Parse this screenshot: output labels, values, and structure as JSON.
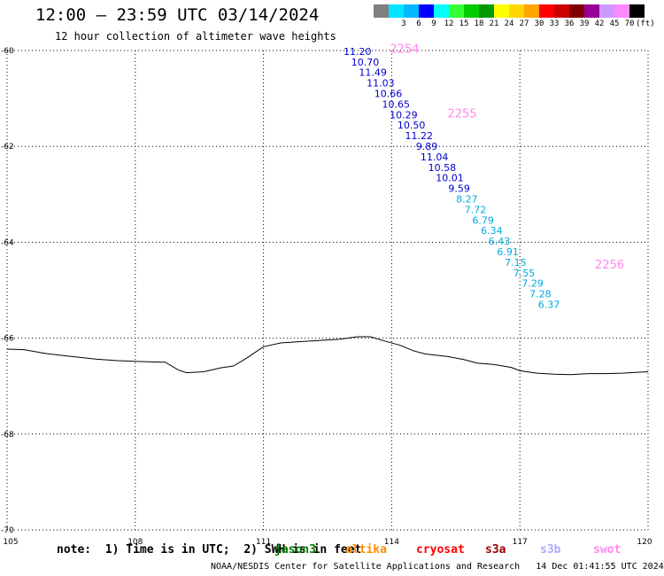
{
  "header": {
    "title": "12:00 – 23:59 UTC 03/14/2024",
    "subtitle": "12 hour collection of altimeter wave heights"
  },
  "legend": {
    "unit": "(ft)",
    "items": [
      {
        "label": "",
        "color": "#808080"
      },
      {
        "label": "3",
        "color": "#00e5ff"
      },
      {
        "label": "6",
        "color": "#00b8ff"
      },
      {
        "label": "9",
        "color": "#0000ff"
      },
      {
        "label": "12",
        "color": "#00ffff"
      },
      {
        "label": "15",
        "color": "#33ff33"
      },
      {
        "label": "18",
        "color": "#00cc00"
      },
      {
        "label": "21",
        "color": "#009900"
      },
      {
        "label": "24",
        "color": "#ffff00"
      },
      {
        "label": "27",
        "color": "#ffd700"
      },
      {
        "label": "30",
        "color": "#ffa500"
      },
      {
        "label": "33",
        "color": "#ff0000"
      },
      {
        "label": "36",
        "color": "#cc0000"
      },
      {
        "label": "39",
        "color": "#800000"
      },
      {
        "label": "42",
        "color": "#990099"
      },
      {
        "label": "45",
        "color": "#cc99ff"
      },
      {
        "label": "70",
        "color": "#ff88ff"
      },
      {
        "label": "",
        "color": "#000000"
      }
    ]
  },
  "map": {
    "lon_ticks": [
      "105",
      "108",
      "111",
      "114",
      "117",
      "120"
    ],
    "lat_ticks": [
      "-60",
      "-62",
      "-64",
      "-66",
      "-68",
      "-70"
    ],
    "lon_range": [
      105,
      120
    ],
    "lat_range": [
      -60,
      -70
    ]
  },
  "track": [
    {
      "lon": 113.2,
      "lat": -60.09,
      "value": "11.20",
      "color": "#0000cc"
    },
    {
      "lon": 113.38,
      "lat": -60.31,
      "value": "10.70",
      "color": "#0000cc"
    },
    {
      "lon": 113.56,
      "lat": -60.53,
      "value": "11.49",
      "color": "#0000cc"
    },
    {
      "lon": 113.74,
      "lat": -60.75,
      "value": "11.03",
      "color": "#0000cc"
    },
    {
      "lon": 113.92,
      "lat": -60.97,
      "value": "10.66",
      "color": "#0000cc"
    },
    {
      "lon": 114.1,
      "lat": -61.19,
      "value": "10.65",
      "color": "#0000cc"
    },
    {
      "lon": 114.28,
      "lat": -61.41,
      "value": "10.29",
      "color": "#0000cc"
    },
    {
      "lon": 114.46,
      "lat": -61.63,
      "value": "10.50",
      "color": "#0000cc"
    },
    {
      "lon": 114.64,
      "lat": -61.85,
      "value": "11.22",
      "color": "#0000cc"
    },
    {
      "lon": 114.82,
      "lat": -62.07,
      "value": "9.89",
      "color": "#0000cc"
    },
    {
      "lon": 115.0,
      "lat": -62.29,
      "value": "11.04",
      "color": "#0000cc"
    },
    {
      "lon": 115.18,
      "lat": -62.51,
      "value": "10.58",
      "color": "#0000cc"
    },
    {
      "lon": 115.36,
      "lat": -62.73,
      "value": "10.01",
      "color": "#0000cc"
    },
    {
      "lon": 115.58,
      "lat": -62.95,
      "value": "9.59",
      "color": "#0000cc"
    },
    {
      "lon": 115.76,
      "lat": -63.17,
      "value": "8.27",
      "color": "#00aadd"
    },
    {
      "lon": 115.96,
      "lat": -63.39,
      "value": "7.72",
      "color": "#00aadd"
    },
    {
      "lon": 116.14,
      "lat": -63.61,
      "value": "6.79",
      "color": "#00aadd"
    },
    {
      "lon": 116.34,
      "lat": -63.83,
      "value": "6.34",
      "color": "#00aadd"
    },
    {
      "lon": 116.52,
      "lat": -64.05,
      "value": "6.43",
      "color": "#00aadd"
    },
    {
      "lon": 116.72,
      "lat": -64.27,
      "value": "6.91",
      "color": "#00aadd"
    },
    {
      "lon": 116.9,
      "lat": -64.49,
      "value": "7.15",
      "color": "#00aadd"
    },
    {
      "lon": 117.1,
      "lat": -64.71,
      "value": "7.55",
      "color": "#00aadd"
    },
    {
      "lon": 117.3,
      "lat": -64.93,
      "value": "7.29",
      "color": "#00aadd"
    },
    {
      "lon": 117.48,
      "lat": -65.15,
      "value": "7.28",
      "color": "#00aadd"
    },
    {
      "lon": 117.68,
      "lat": -65.37,
      "value": "6.37",
      "color": "#00aadd"
    }
  ],
  "time_labels": [
    {
      "lon": 114.3,
      "lat": -60.05,
      "text": "2254"
    },
    {
      "lon": 115.65,
      "lat": -61.4,
      "text": "2255"
    },
    {
      "lon": 119.1,
      "lat": -64.55,
      "text": "2256"
    }
  ],
  "coastline": [
    [
      105.0,
      -66.23
    ],
    [
      105.4,
      -66.24
    ],
    [
      105.9,
      -66.32
    ],
    [
      106.5,
      -66.38
    ],
    [
      107.1,
      -66.44
    ],
    [
      107.6,
      -66.47
    ],
    [
      108.2,
      -66.49
    ],
    [
      108.7,
      -66.5
    ],
    [
      109.0,
      -66.66
    ],
    [
      109.2,
      -66.72
    ],
    [
      109.6,
      -66.7
    ],
    [
      110.0,
      -66.62
    ],
    [
      110.3,
      -66.58
    ],
    [
      110.6,
      -66.42
    ],
    [
      110.8,
      -66.3
    ],
    [
      111.0,
      -66.18
    ],
    [
      111.4,
      -66.1
    ],
    [
      111.9,
      -66.07
    ],
    [
      112.3,
      -66.05
    ],
    [
      112.8,
      -66.02
    ],
    [
      113.2,
      -65.97
    ],
    [
      113.5,
      -65.97
    ],
    [
      113.8,
      -66.05
    ],
    [
      114.2,
      -66.15
    ],
    [
      114.5,
      -66.26
    ],
    [
      114.7,
      -66.31
    ],
    [
      114.8,
      -66.33
    ],
    [
      115.3,
      -66.38
    ],
    [
      115.7,
      -66.45
    ],
    [
      116.0,
      -66.52
    ],
    [
      116.4,
      -66.55
    ],
    [
      116.8,
      -66.61
    ],
    [
      117.0,
      -66.68
    ],
    [
      117.4,
      -66.73
    ],
    [
      117.8,
      -66.75
    ],
    [
      118.2,
      -66.76
    ],
    [
      118.6,
      -66.74
    ],
    [
      119.0,
      -66.74
    ],
    [
      119.4,
      -66.73
    ],
    [
      119.8,
      -66.71
    ],
    [
      120.0,
      -66.7
    ]
  ],
  "footer": {
    "note": "note:  1) Time is in UTC;  2) SWH is in feet",
    "satellites": [
      {
        "name": "jason3",
        "color": "#007a00"
      },
      {
        "name": "altika",
        "color": "#ff8c00"
      },
      {
        "name": "cryosat",
        "color": "#ff0000"
      },
      {
        "name": "s3a",
        "color": "#990000"
      },
      {
        "name": "s3b",
        "color": "#b0a8ff"
      },
      {
        "name": "swot",
        "color": "#ff88ee"
      }
    ],
    "credit": "NOAA/NESDIS Center for Satellite Applications and Research   14 Dec 01:41:55 UTC 2024"
  }
}
